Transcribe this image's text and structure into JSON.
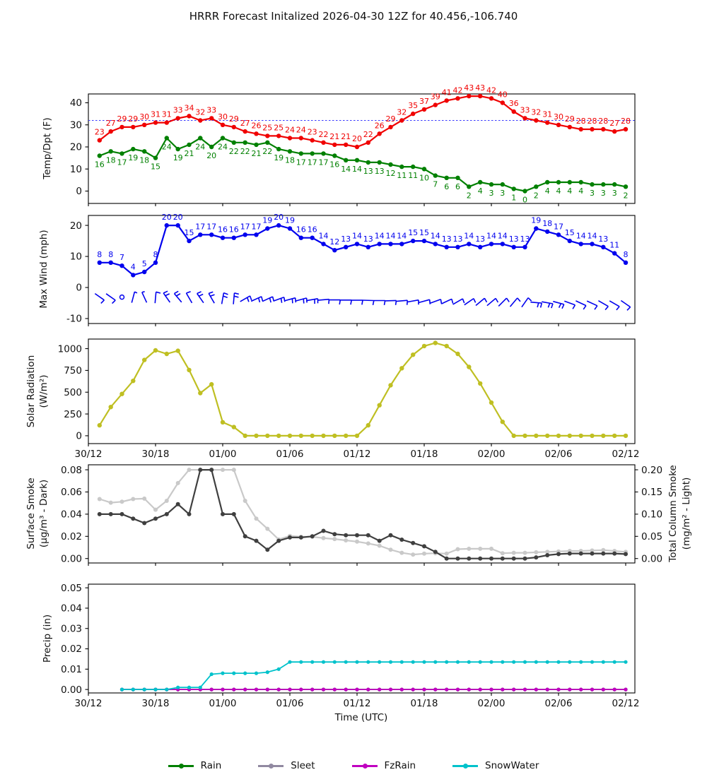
{
  "title": "HRRR Forecast Initalized 2026-04-30 12Z for 40.456,-106.740",
  "xlabel": "Time (UTC)",
  "legend": {
    "items": [
      {
        "label": "Rain",
        "color": "#007f00"
      },
      {
        "label": "Sleet",
        "color": "#9189a1"
      },
      {
        "label": "FzRain",
        "color": "#c000c0"
      },
      {
        "label": "SnowWater",
        "color": "#00c2cb"
      }
    ]
  },
  "chart_data": {
    "type": "line",
    "subtype": "multi-panel-meteogram",
    "x_axis": {
      "label": "Time (UTC)",
      "ticks": [
        "30/12",
        "30/18",
        "01/00",
        "01/06",
        "01/12",
        "01/18",
        "02/00",
        "02/06",
        "02/12"
      ],
      "hours_span": 48,
      "first_point_hour": 1,
      "points_per_hour": 1
    },
    "panels": [
      {
        "id": "temp",
        "ylabel_lines": [
          "Temp/Dpt (F)"
        ],
        "yticks": [
          0,
          10,
          20,
          30,
          40
        ],
        "ytick_decimals": 0,
        "ylim": [
          -5.6,
          44
        ],
        "freezing_line": 32,
        "freezing_line_color": "#3a3aff",
        "series": [
          {
            "name": "Temp",
            "color": "#f00000",
            "show_labels": true,
            "label_dy": -8,
            "values": [
              23,
              27,
              29,
              29,
              30,
              31,
              31,
              33,
              34,
              32,
              33,
              30,
              29,
              27,
              26,
              25,
              25,
              24,
              24,
              23,
              22,
              21,
              21,
              20,
              22,
              26,
              29,
              32,
              35,
              37,
              39,
              41,
              42,
              43,
              43,
              42,
              40,
              36,
              33,
              32,
              31,
              30,
              29,
              28,
              28,
              28,
              27,
              28
            ]
          },
          {
            "name": "Dpt",
            "color": "#008000",
            "show_labels": true,
            "label_dy": 16,
            "values": [
              16,
              18,
              17,
              19,
              18,
              15,
              24,
              19,
              21,
              24,
              20,
              24,
              22,
              22,
              21,
              22,
              19,
              18,
              17,
              17,
              17,
              16,
              14,
              14,
              13,
              13,
              12,
              11,
              11,
              10,
              7,
              6,
              6,
              2,
              4,
              3,
              3,
              1,
              0,
              2,
              4,
              4,
              4,
              4,
              3,
              3,
              3,
              2
            ]
          }
        ]
      },
      {
        "id": "wind",
        "ylabel_lines": [
          "Max Wind (mph)"
        ],
        "yticks": [
          -10,
          0,
          10,
          20
        ],
        "ytick_decimals": 0,
        "ylim": [
          -11.6,
          23.2
        ],
        "series": [
          {
            "name": "Max Wind",
            "color": "#0000ee",
            "show_labels": true,
            "label_dy": -8,
            "values": [
              8,
              8,
              7,
              4,
              5,
              8,
              20,
              20,
              15,
              17,
              17,
              16,
              16,
              17,
              17,
              19,
              20,
              19,
              16,
              16,
              14,
              12,
              13,
              14,
              13,
              14,
              14,
              14,
              15,
              15,
              14,
              13,
              13,
              14,
              13,
              14,
              14,
              13,
              13,
              19,
              18,
              17,
              15,
              14,
              14,
              13,
              11,
              8
            ]
          }
        ],
        "barbs": {
          "color": "#0000ee",
          "calm_hours": [
            3
          ],
          "angles_deg": [
            -35,
            -35,
            null,
            75,
            115,
            85,
            125,
            130,
            120,
            125,
            120,
            80,
            85,
            30,
            25,
            25,
            20,
            15,
            15,
            10,
            5,
            0,
            0,
            0,
            -2,
            0,
            2,
            5,
            10,
            15,
            20,
            25,
            30,
            35,
            40,
            40,
            45,
            50,
            55,
            -5,
            -10,
            -15,
            -20,
            -25,
            -25,
            -30,
            -30,
            -35
          ]
        }
      },
      {
        "id": "solar",
        "ylabel_lines": [
          "Solar Radiation",
          "(W/m²)"
        ],
        "yticks": [
          0,
          250,
          500,
          750,
          1000
        ],
        "ytick_decimals": 0,
        "ylim": [
          -90,
          1110
        ],
        "show_x_tick_labels": true,
        "series": [
          {
            "name": "Solar Radiation",
            "color": "#bfbf22",
            "show_labels": false,
            "values": [
              120,
              330,
              480,
              630,
              870,
              980,
              940,
              975,
              755,
              490,
              590,
              155,
              100,
              0,
              0,
              0,
              0,
              0,
              0,
              0,
              0,
              0,
              0,
              0,
              120,
              350,
              580,
              775,
              930,
              1030,
              1065,
              1030,
              940,
              790,
              600,
              380,
              160,
              0,
              0,
              0,
              0,
              0,
              0,
              0,
              0,
              0,
              0,
              0
            ]
          }
        ]
      },
      {
        "id": "smoke",
        "ylabel_lines": [
          "Surface Smoke",
          "(μg/m³ - Dark)"
        ],
        "ylabel_right_lines": [
          "Total Column Smoke",
          "(mg/m² - Light)"
        ],
        "yticks": [
          0,
          0.02,
          0.04,
          0.06,
          0.08
        ],
        "ytick_decimals": 2,
        "yticks_right": [
          0,
          0.05,
          0.1,
          0.15,
          0.2
        ],
        "ytick_right_decimals": 2,
        "ylim": [
          -0.004,
          0.0845
        ],
        "right_scale_ratio": 2.5,
        "series": [
          {
            "name": "Total Column Smoke",
            "color": "#c9c9c9",
            "axis": "right",
            "show_labels": false,
            "values": [
              0.134,
              0.126,
              0.128,
              0.134,
              0.135,
              0.11,
              0.13,
              0.17,
              0.2,
              0.2,
              0.2,
              0.2,
              0.2,
              0.13,
              0.09,
              0.067,
              0.043,
              0.051,
              0.049,
              0.049,
              0.046,
              0.044,
              0.041,
              0.038,
              0.034,
              0.029,
              0.02,
              0.013,
              0.009,
              0.011,
              0.012,
              0.011,
              0.021,
              0.022,
              0.022,
              0.022,
              0.012,
              0.013,
              0.013,
              0.014,
              0.015,
              0.016,
              0.017,
              0.017,
              0.018,
              0.019,
              0.017,
              0.015
            ]
          },
          {
            "name": "Surface Smoke",
            "color": "#3f3f3f",
            "axis": "left",
            "show_labels": false,
            "values": [
              0.04,
              0.04,
              0.04,
              0.036,
              0.032,
              0.036,
              0.04,
              0.049,
              0.04,
              0.08,
              0.08,
              0.04,
              0.04,
              0.02,
              0.016,
              0.008,
              0.016,
              0.019,
              0.019,
              0.02,
              0.025,
              0.022,
              0.021,
              0.021,
              0.021,
              0.016,
              0.021,
              0.017,
              0.014,
              0.011,
              0.006,
              0,
              0,
              0,
              0,
              0,
              0,
              0,
              0,
              0.001,
              0.003,
              0.004,
              0.0045,
              0.0045,
              0.0045,
              0.0045,
              0.0045,
              0.004
            ]
          }
        ]
      },
      {
        "id": "precip",
        "ylabel_lines": [
          "Precip (in)"
        ],
        "yticks": [
          0,
          0.01,
          0.02,
          0.03,
          0.04,
          0.05
        ],
        "ytick_decimals": 2,
        "ylim": [
          -0.0017,
          0.0518
        ],
        "show_x_tick_labels": true,
        "series": [
          {
            "name": "Rain",
            "color": "#007f00",
            "show_labels": false,
            "values": [
              null,
              null,
              0,
              0,
              0,
              0,
              0,
              0,
              0,
              0,
              0,
              0,
              0,
              0,
              0,
              0,
              0,
              0,
              0,
              0,
              0,
              0,
              0,
              0,
              0,
              0,
              0,
              0,
              0,
              0,
              0,
              0,
              0,
              0,
              0,
              0,
              0,
              0,
              0,
              0,
              0,
              0,
              0,
              0,
              0,
              0,
              0,
              0
            ]
          },
          {
            "name": "Sleet",
            "color": "#9189a1",
            "show_labels": false,
            "values": [
              null,
              null,
              0,
              0,
              0,
              0,
              0,
              0,
              0,
              0,
              0,
              0,
              0,
              0,
              0,
              0,
              0,
              0,
              0,
              0,
              0,
              0,
              0,
              0,
              0,
              0,
              0,
              0,
              0,
              0,
              0,
              0,
              0,
              0,
              0,
              0,
              0,
              0,
              0,
              0,
              0,
              0,
              0,
              0,
              0,
              0,
              0,
              0
            ]
          },
          {
            "name": "FzRain",
            "color": "#c000c0",
            "show_labels": false,
            "values": [
              null,
              null,
              0,
              0,
              0,
              0,
              0,
              0,
              0,
              0,
              0,
              0,
              0,
              0,
              0,
              0,
              0,
              0,
              0,
              0,
              0,
              0,
              0,
              0,
              0,
              0,
              0,
              0,
              0,
              0,
              0,
              0,
              0,
              0,
              0,
              0,
              0,
              0,
              0,
              0,
              0,
              0,
              0,
              0,
              0,
              0,
              0,
              0
            ]
          },
          {
            "name": "SnowWater",
            "color": "#00c2cb",
            "show_labels": false,
            "values": [
              null,
              null,
              0,
              0,
              0,
              0,
              0,
              0.001,
              0.001,
              0.001,
              0.0075,
              0.008,
              0.008,
              0.008,
              0.008,
              0.0085,
              0.01,
              0.0135,
              0.0135,
              0.0135,
              0.0135,
              0.0135,
              0.0135,
              0.0135,
              0.0135,
              0.0135,
              0.0135,
              0.0135,
              0.0135,
              0.0135,
              0.0135,
              0.0135,
              0.0135,
              0.0135,
              0.0135,
              0.0135,
              0.0135,
              0.0135,
              0.0135,
              0.0135,
              0.0135,
              0.0135,
              0.0135,
              0.0135,
              0.0135,
              0.0135,
              0.0135,
              0.0135
            ]
          }
        ]
      }
    ]
  }
}
